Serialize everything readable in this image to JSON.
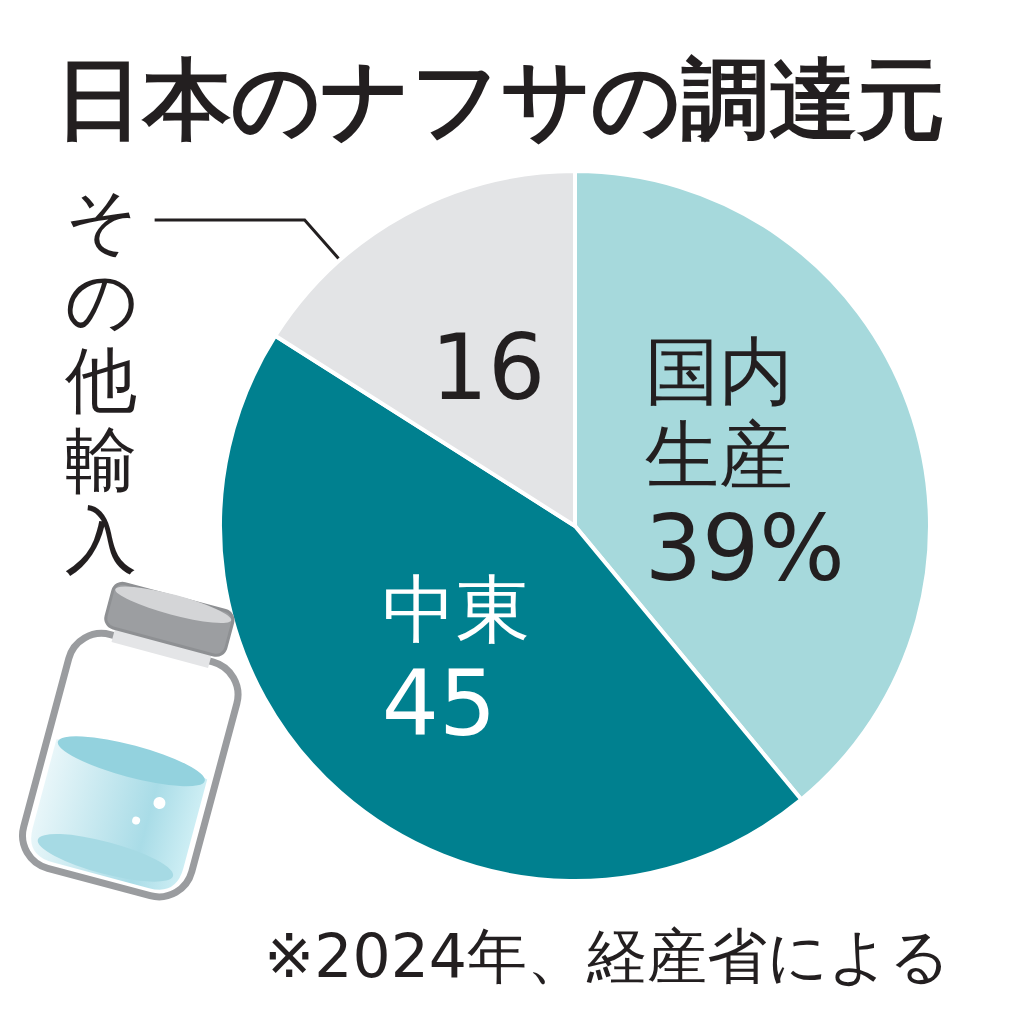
{
  "chart_data": {
    "type": "pie",
    "title": "日本のナフサの調達元",
    "categories": [
      "国内生産",
      "中東",
      "その他輸入"
    ],
    "values": [
      39,
      45,
      16
    ],
    "colors": [
      "#a6d9dc",
      "#00808f",
      "#e3e4e6"
    ],
    "value_labels": [
      "39%",
      "45",
      "16"
    ],
    "legend": false,
    "annotations": [
      "※2024年、経産省による"
    ]
  }
}
